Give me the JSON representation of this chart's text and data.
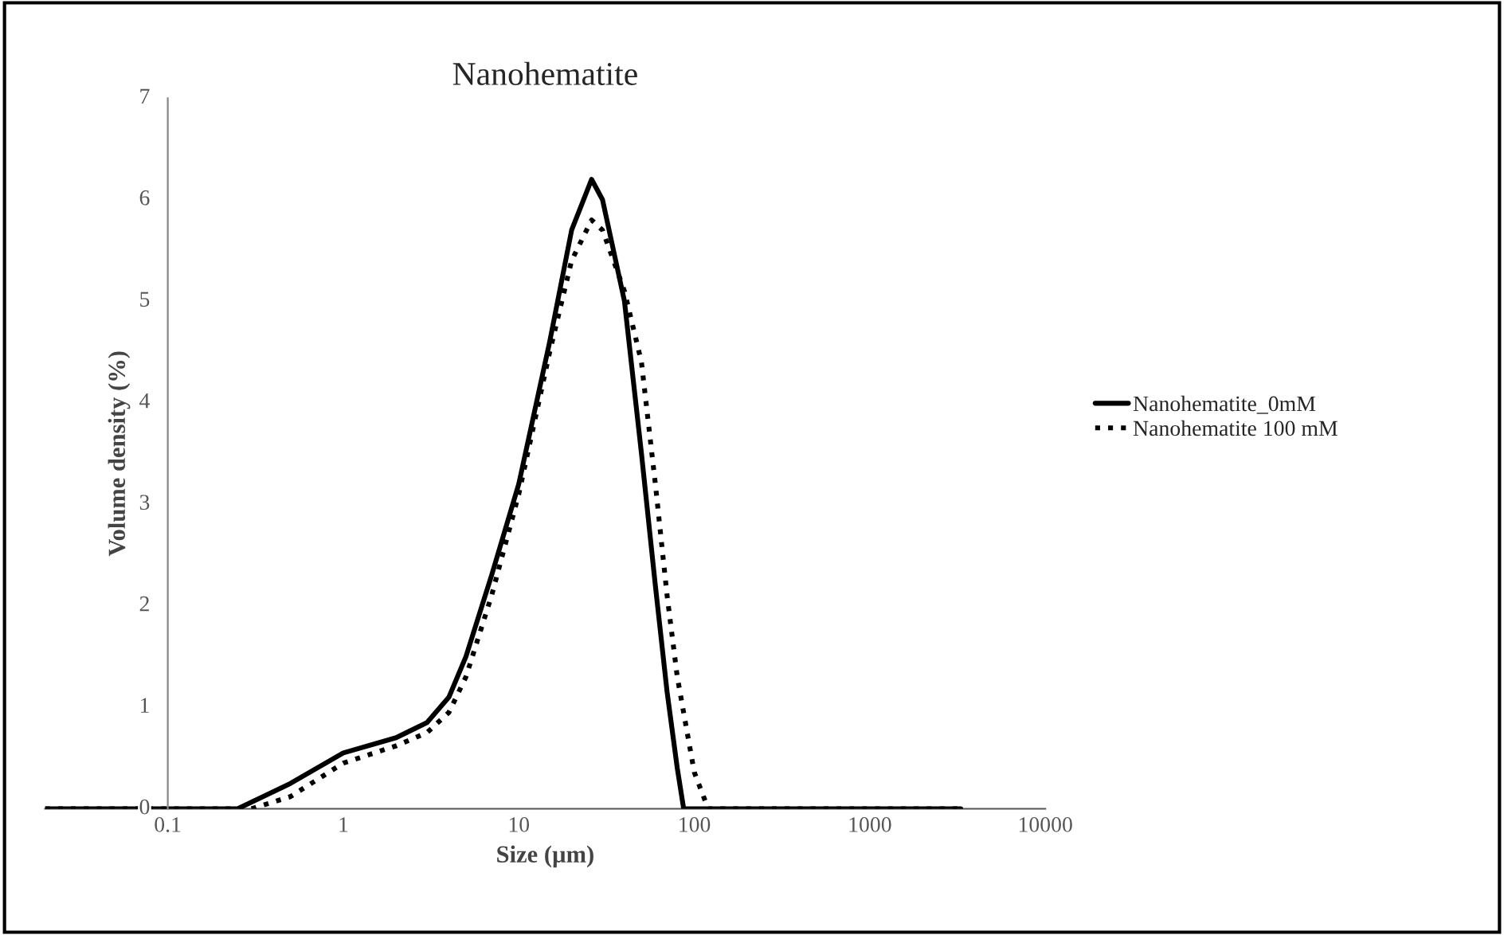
{
  "chart_data": {
    "type": "line",
    "title": "Nanohematite",
    "xlabel": "Size (µm)",
    "ylabel": "Volume density (%)",
    "log": "x",
    "xlim": [
      0.02,
      10000
    ],
    "xticks": [
      0.1,
      1,
      10,
      100,
      1000,
      10000
    ],
    "ylim": [
      0,
      7
    ],
    "yticks": [
      0,
      1,
      2,
      3,
      4,
      5,
      6,
      7
    ],
    "grid": false,
    "legend": "right",
    "marker": "none",
    "series": [
      {
        "name": "Nanohematite_0mM",
        "color": "#000000",
        "line_style": "solid",
        "x": [
          0.02,
          0.1,
          0.25,
          0.5,
          1,
          2,
          3,
          4,
          5,
          7,
          10,
          15,
          20,
          26,
          30,
          40,
          50,
          60,
          70,
          80,
          87,
          100,
          1000,
          3300
        ],
        "values": [
          0,
          0,
          0,
          0.25,
          0.55,
          0.7,
          0.85,
          1.1,
          1.5,
          2.3,
          3.2,
          4.6,
          5.7,
          6.2,
          6.0,
          5.0,
          3.5,
          2.2,
          1.15,
          0.4,
          0,
          0,
          0,
          0
        ]
      },
      {
        "name": "Nanohematite 100 mM",
        "color": "#000000",
        "line_style": "dotted",
        "x": [
          0.02,
          0.1,
          0.3,
          0.5,
          1,
          2,
          3,
          4,
          5,
          7,
          10,
          15,
          20,
          26,
          30,
          40,
          50,
          60,
          70,
          80,
          100,
          120,
          1000,
          3300
        ],
        "values": [
          0,
          0,
          0,
          0.12,
          0.45,
          0.62,
          0.75,
          0.95,
          1.3,
          2.1,
          3.1,
          4.5,
          5.4,
          5.8,
          5.7,
          5.1,
          4.4,
          3.2,
          2.1,
          1.3,
          0.36,
          0,
          0,
          0
        ]
      }
    ]
  }
}
